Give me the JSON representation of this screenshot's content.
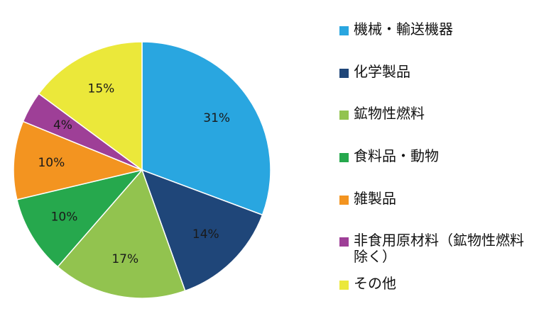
{
  "chart_data": {
    "type": "pie",
    "categories": [
      "機械・輸送機器",
      "化学製品",
      "鉱物性燃料",
      "食料品・動物",
      "雑製品",
      "非食用原材料（鉱物性燃料除く）",
      "その他"
    ],
    "values": [
      31,
      14,
      17,
      10,
      10,
      4,
      15
    ],
    "data_labels": [
      "31%",
      "14%",
      "17%",
      "10%",
      "10%",
      "4%",
      "15%"
    ],
    "colors": [
      "#29a6e0",
      "#1f4679",
      "#92c34f",
      "#26a84d",
      "#f39420",
      "#9e3f97",
      "#ebe83a"
    ],
    "legend_placement": "right",
    "start_angle_deg": 0,
    "direction": "clockwise"
  }
}
